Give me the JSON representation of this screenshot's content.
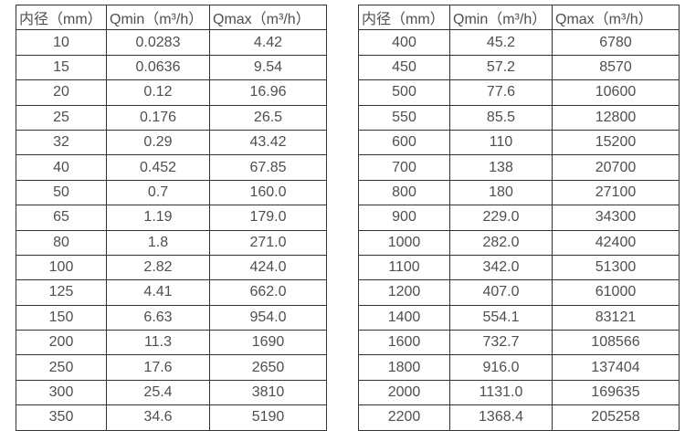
{
  "page": {
    "background": "#ffffff",
    "border_color": "#333333",
    "text_color": "#4f4f4f"
  },
  "tables": [
    {
      "name": "flow-table-small-diameter",
      "headers": [
        "内径（mm）",
        "Qmin（m³/h）",
        "Qmax（m³/h）"
      ],
      "rows": [
        [
          "10",
          "0.0283",
          "4.42"
        ],
        [
          "15",
          "0.0636",
          "9.54"
        ],
        [
          "20",
          "0.12",
          "16.96"
        ],
        [
          "25",
          "0.176",
          "26.5"
        ],
        [
          "32",
          "0.29",
          "43.42"
        ],
        [
          "40",
          "0.452",
          "67.85"
        ],
        [
          "50",
          "0.7",
          "160.0"
        ],
        [
          "65",
          "1.19",
          "179.0"
        ],
        [
          "80",
          "1.8",
          "271.0"
        ],
        [
          "100",
          "2.82",
          "424.0"
        ],
        [
          "125",
          "4.41",
          "662.0"
        ],
        [
          "150",
          "6.63",
          "954.0"
        ],
        [
          "200",
          "11.3",
          "1690"
        ],
        [
          "250",
          "17.6",
          "2650"
        ],
        [
          "300",
          "25.4",
          "3810"
        ],
        [
          "350",
          "34.6",
          "5190"
        ]
      ]
    },
    {
      "name": "flow-table-large-diameter",
      "headers": [
        "内径（mm）",
        "Qmin（m³/h）",
        "Qmax（m³/h）"
      ],
      "rows": [
        [
          "400",
          "45.2",
          "6780"
        ],
        [
          "450",
          "57.2",
          "8570"
        ],
        [
          "500",
          "77.6",
          "10600"
        ],
        [
          "550",
          "85.5",
          "12800"
        ],
        [
          "600",
          "110",
          "15200"
        ],
        [
          "700",
          "138",
          "20700"
        ],
        [
          "800",
          "180",
          "27100"
        ],
        [
          "900",
          "229.0",
          "34300"
        ],
        [
          "1000",
          "282.0",
          "42400"
        ],
        [
          "1100",
          "342.0",
          "51300"
        ],
        [
          "1200",
          "407.0",
          "61000"
        ],
        [
          "1400",
          "554.1",
          "83121"
        ],
        [
          "1600",
          "732.7",
          "108566"
        ],
        [
          "1800",
          "916.0",
          "137404"
        ],
        [
          "2000",
          "1131.0",
          "169635"
        ],
        [
          "2200",
          "1368.4",
          "205258"
        ]
      ]
    }
  ]
}
